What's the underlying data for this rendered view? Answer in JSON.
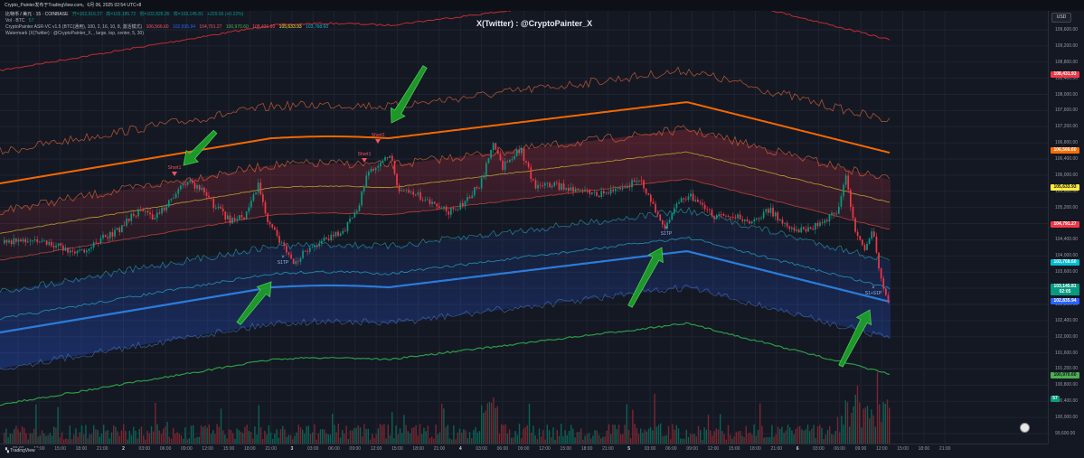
{
  "window": {
    "title": "Crypto_Painter发布于TradingView.com。6月 06, 2025 02:54 UTC+8"
  },
  "legend": {
    "symbol_line": {
      "name": "比特币 / 美元 · 15 · COINBASE",
      "open": "开=102,916.27",
      "high": "高=103,185.72",
      "low": "低=102,826.35",
      "close": "收=103,145.81",
      "change": "+229.56 (+0.22%)"
    },
    "vol_line": {
      "name": "Vol · BTC",
      "value": "57"
    },
    "indicator_line": {
      "name": "CryptoPainter ASR-VC v1.5 (BTC(通用), 100, 2, 16, 10, 8, 激活模式)",
      "values": [
        "106,566.60",
        "102,835.94",
        "104,791.27",
        "100,970.60",
        "108,431.93",
        "105,633.93",
        "103,768.60"
      ],
      "colors": [
        "#f7525f",
        "#2962ff",
        "#f7525f",
        "#4caf50",
        "#f7525f",
        "#ffeb3b",
        "#00bcd4"
      ]
    },
    "watermark_line": "Watermark (X(Twitter) : @CryptoPainter_X, , large, top, center, 5, 30)"
  },
  "watermark": "X(Twitter) : @CryptoPainter_X",
  "currency": "USD",
  "price_axis": {
    "labels": [
      "109,600.00",
      "109,200.00",
      "108,800.00",
      "108,400.00",
      "108,000.00",
      "107,600.00",
      "107,200.00",
      "106,800.00",
      "106,400.00",
      "106,000.00",
      "105,600.00",
      "105,200.00",
      "104,800.00",
      "104,400.00",
      "104,000.00",
      "103,600.00",
      "103,200.00",
      "102,800.00",
      "102,400.00",
      "102,000.00",
      "101,600.00",
      "101,200.00",
      "100,800.00",
      "100,400.00",
      "100,000.00",
      "99,600.00"
    ],
    "pills": [
      {
        "value": "108,431.93",
        "bg": "#f23645",
        "fg": "#ffffff"
      },
      {
        "value": "106,566.60",
        "bg": "#ff6d00",
        "fg": "#ffffff"
      },
      {
        "value": "105,633.93",
        "bg": "#ffeb3b",
        "fg": "#131722"
      },
      {
        "value": "104,791.27",
        "bg": "#f23645",
        "fg": "#ffffff"
      },
      {
        "value": "103,768.60",
        "bg": "#00bcd4",
        "fg": "#ffffff"
      },
      {
        "value": "103,145.81",
        "bg": "#089981",
        "fg": "#ffffff"
      },
      {
        "value": "02:05",
        "bg": "#089981",
        "fg": "#ffffff"
      },
      {
        "value": "102,835.94",
        "bg": "#2962ff",
        "fg": "#ffffff"
      },
      {
        "value": "100,970.60",
        "bg": "#4caf50",
        "fg": "#131722"
      },
      {
        "value": "57",
        "bg": "#089981",
        "fg": "#ffffff"
      }
    ]
  },
  "time_axis": {
    "labels": [
      "09:00",
      "12:00",
      "15:00",
      "18:00",
      "21:00",
      "2",
      "03:00",
      "06:00",
      "09:00",
      "12:00",
      "15:00",
      "18:00",
      "21:00",
      "3",
      "03:00",
      "06:00",
      "09:00",
      "12:00",
      "15:00",
      "18:00",
      "21:00",
      "4",
      "03:00",
      "06:00",
      "09:00",
      "12:00",
      "15:00",
      "18:00",
      "21:00",
      "5",
      "03:00",
      "06:00",
      "09:00",
      "12:00",
      "15:00",
      "18:00",
      "21:00",
      "6",
      "03:00",
      "06:00",
      "09:00",
      "12:00",
      "15:00",
      "18:00",
      "21:00"
    ]
  },
  "markers": [
    {
      "label": "Short1"
    },
    {
      "label": "Short1"
    },
    {
      "label": "Short2"
    },
    {
      "label": "S1TP"
    },
    {
      "label": "S1TP"
    },
    {
      "label": "S1+S1P"
    }
  ],
  "tv_logo": "TradingView",
  "colors": {
    "background": "#141823",
    "bull": "#089981",
    "bear": "#f23645",
    "arrow": "#1f9d2a"
  }
}
